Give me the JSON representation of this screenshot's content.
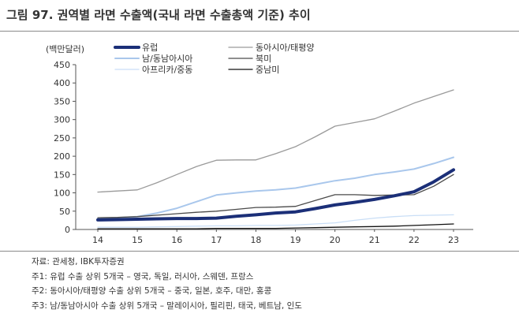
{
  "figure": {
    "title": "그림 97. 권역별 라면 수출액(국내 라면 수출총액 기준) 추이"
  },
  "notes": [
    "자료: 관세청, IBK투자증권",
    "주1: 유럽 수출 상위 5개국 – 영국, 독일, 러시아, 스웨덴, 프랑스",
    "주2: 동아시아/태평양 수출 상위 5개국 – 중국, 일본, 호주, 대만, 홍콩",
    "주3: 남/동남아시아 수출 상위 5개국 – 말레이시아, 필리핀, 태국, 베트남, 인도"
  ],
  "colors": {
    "europe": "#1b2f78",
    "eastasia": "#9a9a9a",
    "southasia": "#a9c7ec",
    "northamerica": "#4a4a4a",
    "africa_me": "#c9def6",
    "latam": "#111111"
  },
  "chart_data": {
    "type": "line",
    "ylabel": "(백만달러)",
    "ylim": [
      0,
      450
    ],
    "yticks": [
      0,
      50,
      100,
      150,
      200,
      250,
      300,
      350,
      400,
      450
    ],
    "x": [
      14,
      14.5,
      15,
      15.5,
      16,
      16.5,
      17,
      17.5,
      18,
      18.5,
      19,
      19.5,
      20,
      20.5,
      21,
      21.5,
      22,
      22.5,
      23
    ],
    "xticks": [
      "14",
      "15",
      "16",
      "17",
      "18",
      "19",
      "20",
      "21",
      "22",
      "23"
    ],
    "legend_position": "top",
    "series": [
      {
        "name": "유럽",
        "key": "europe",
        "values": [
          26,
          27,
          28,
          29,
          30,
          30,
          31,
          36,
          40,
          45,
          48,
          57,
          67,
          74,
          82,
          92,
          103,
          130,
          163
        ]
      },
      {
        "name": "동아시아/태평양",
        "key": "eastasia",
        "values": [
          102,
          105,
          108,
          128,
          150,
          172,
          189,
          190,
          190,
          207,
          226,
          253,
          282,
          292,
          302,
          323,
          345,
          363,
          381
        ]
      },
      {
        "name": "남/동남아시아",
        "key": "southasia",
        "values": [
          30,
          32,
          35,
          45,
          58,
          76,
          94,
          100,
          105,
          108,
          113,
          123,
          133,
          140,
          150,
          157,
          165,
          180,
          197
        ]
      },
      {
        "name": "북미",
        "key": "northamerica",
        "values": [
          32,
          33,
          35,
          39,
          43,
          47,
          50,
          55,
          60,
          61,
          63,
          79,
          95,
          95,
          93,
          94,
          95,
          118,
          150
        ]
      },
      {
        "name": "아프리카/중동",
        "key": "africa_me",
        "values": [
          6,
          6,
          6,
          7,
          8,
          9,
          10,
          10,
          11,
          11,
          12,
          15,
          18,
          25,
          31,
          35,
          38,
          39,
          40
        ]
      },
      {
        "name": "중남미",
        "key": "latam",
        "values": [
          2,
          2,
          2,
          2,
          2,
          2,
          3,
          3,
          3,
          3,
          4,
          5,
          6,
          7,
          8,
          9,
          11,
          13,
          15
        ]
      }
    ]
  }
}
